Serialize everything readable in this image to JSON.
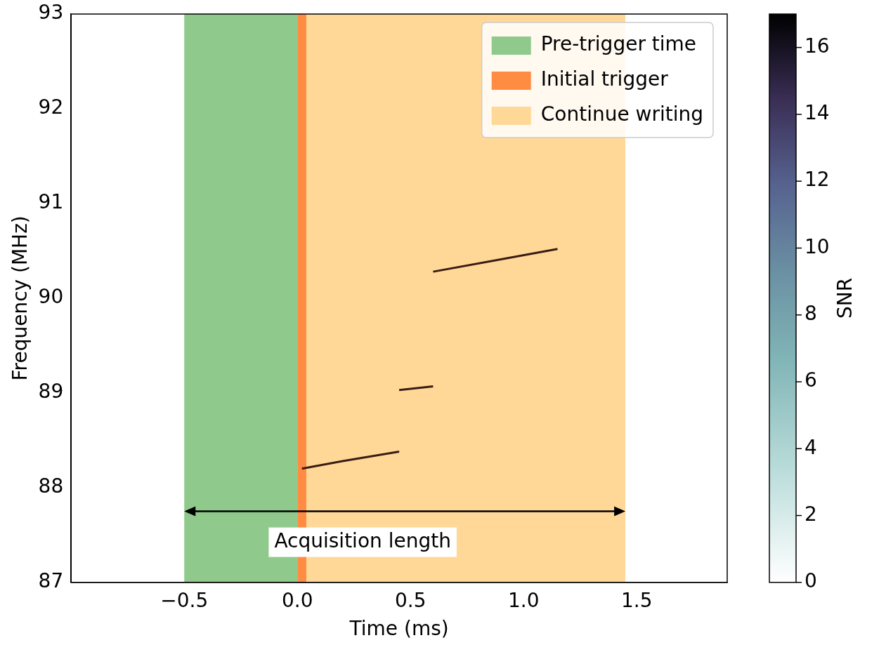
{
  "chart_data": {
    "type": "line",
    "x_label": "Time (ms)",
    "y_label": "Frequency (MHz)",
    "x": [
      0.02,
      0.2,
      0.45,
      0.45,
      0.45,
      0.6,
      0.6,
      0.6,
      0.9,
      1.15
    ],
    "values": [
      88.2,
      88.28,
      88.38,
      null,
      89.03,
      89.07,
      null,
      90.28,
      90.41,
      90.52
    ],
    "color": "#3b1c14",
    "xlim": [
      -1.0,
      1.9
    ],
    "xticks": [
      {
        "value": -0.5,
        "label": "−0.5"
      },
      {
        "value": 0,
        "label": "0.0"
      },
      {
        "value": 0.5,
        "label": "0.5"
      },
      {
        "value": 1,
        "label": "1.0"
      },
      {
        "value": 1.5,
        "label": "1.5"
      }
    ],
    "ylim": [
      87,
      93
    ],
    "yticks": [
      87,
      88,
      89,
      90,
      91,
      92,
      93
    ],
    "grid": false,
    "legend": "upper right",
    "regions": [
      {
        "name": "Pre-trigger time",
        "color": "#8fca8c",
        "x": [
          -0.5,
          0
        ]
      },
      {
        "name": "Initial trigger",
        "color": "#ff8c42",
        "x": [
          0,
          0.04
        ]
      },
      {
        "name": "Continue writing",
        "color": "#ffd898",
        "x": [
          0.04,
          1.45
        ]
      }
    ],
    "annotation": {
      "text": "Acquisition length",
      "x": [
        -0.5,
        1.45
      ],
      "y": 87.75
    },
    "colorbar": {
      "label": "SNR",
      "lim": [
        0,
        17
      ],
      "ticks": [
        0,
        2,
        4,
        6,
        8,
        10,
        12,
        14,
        16
      ]
    }
  }
}
